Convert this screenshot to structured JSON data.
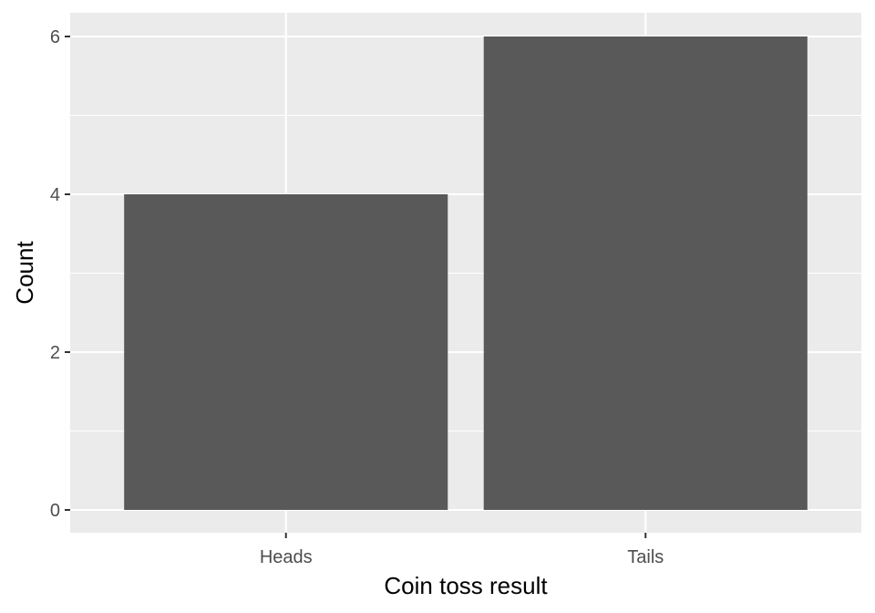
{
  "chart_data": {
    "type": "bar",
    "title": "",
    "xlabel": "Coin toss result",
    "ylabel": "Count",
    "categories": [
      "Heads",
      "Tails"
    ],
    "values": [
      4,
      6
    ],
    "ylim": [
      0,
      6.3
    ],
    "y_ticks": [
      "0",
      "2",
      "4",
      "6"
    ],
    "grid": true,
    "legend": "none",
    "colors": {
      "bar": "#595959",
      "panel": "#ebebeb",
      "grid": "#ffffff",
      "tick_label": "#4d4d4d",
      "axis_title": "#000000"
    }
  }
}
